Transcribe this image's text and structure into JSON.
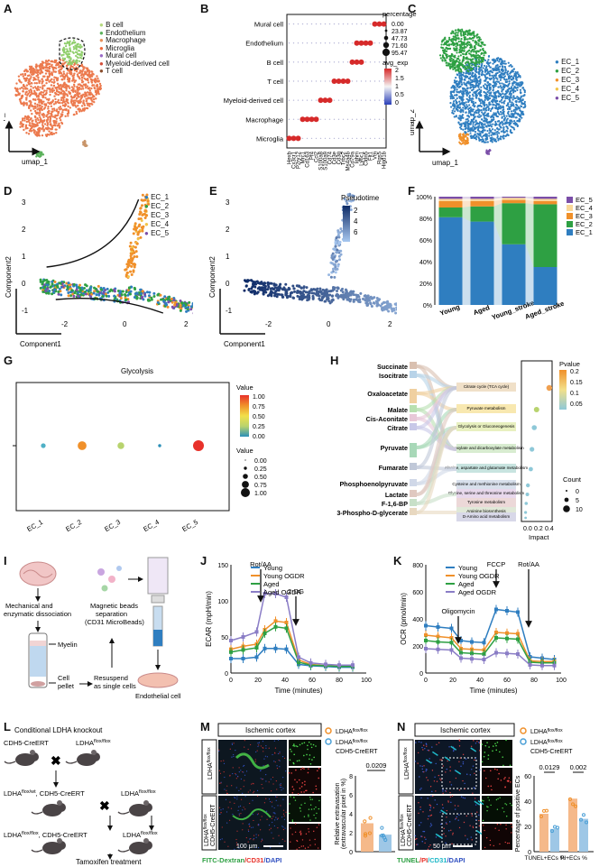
{
  "panels": {
    "A": {
      "letter": "A",
      "legend": [
        "B cell",
        "Endothelium",
        "Macrophage",
        "Microglia",
        "Mural cell",
        "Myeloid-derived cell",
        "T cell"
      ],
      "legend_colors": [
        "#b6d97e",
        "#5cb25c",
        "#e8905a",
        "#f06a3a",
        "#9b6bc8",
        "#d34f3a",
        "#8a4e2e"
      ],
      "xlabel": "umap_1",
      "ylabel": "umap_2"
    },
    "B": {
      "letter": "B",
      "rows": [
        "Mural cell",
        "Endothelium",
        "B cell",
        "T cell",
        "Myeloid-derived cell",
        "Macrophage",
        "Microglia"
      ],
      "genes": [
        "Hexb",
        "Cx3cr1",
        "P2ry12",
        "Mrc1",
        "Cd163",
        "Pf4",
        "Ccl2",
        "S100a8",
        "S100a9",
        "Cd74",
        "Cd3e",
        "Cd3g",
        "Trbc2",
        "Ms4a4b",
        "Cd79a",
        "Ighm",
        "Ly6c1",
        "Cldn5",
        "Flt1",
        "Vtn",
        "Rgs5",
        "Higd1b"
      ],
      "legend_title1": "percentage",
      "pct_values": [
        "0.00",
        "23.87",
        "47.73",
        "71.60",
        "95.47"
      ],
      "legend_title2": "avg_exp",
      "exp_ticks": [
        "2",
        "1.5",
        "1",
        "0.5",
        "0"
      ]
    },
    "C": {
      "letter": "C",
      "legend": [
        "EC_1",
        "EC_2",
        "EC_3",
        "EC_4",
        "EC_5"
      ],
      "legend_colors": [
        "#2f7ec0",
        "#2ea043",
        "#f0902a",
        "#f2c54a",
        "#7b4ea8"
      ],
      "xlabel": "umap_1",
      "ylabel": "umap_2"
    },
    "D": {
      "letter": "D",
      "legend": [
        "EC_1",
        "EC_2",
        "EC_3",
        "EC_4",
        "EC_5"
      ],
      "xlabel": "Component1",
      "ylabel": "Component2",
      "xticks": [
        "-2",
        "0",
        "2"
      ],
      "yticks": [
        "3",
        "2",
        "1",
        "0",
        "-1"
      ]
    },
    "E": {
      "letter": "E",
      "legend_title": "Pseudotime",
      "legend_ticks": [
        "2",
        "4",
        "6"
      ],
      "xlabel": "Component1",
      "ylabel": "Component2",
      "xticks": [
        "-2",
        "0",
        "2"
      ],
      "yticks": [
        "3",
        "2",
        "1",
        "0",
        "-1"
      ]
    },
    "F": {
      "letter": "F",
      "legend": [
        "EC_5",
        "EC_4",
        "EC_3",
        "EC_2",
        "EC_1"
      ],
      "yticks": [
        "100%",
        "80%",
        "60%",
        "40%",
        "20%",
        "0%"
      ]
    },
    "G": {
      "letter": "G",
      "title": "Glycolysis",
      "legend_title1": "Value",
      "value_ticks": [
        "1.00",
        "0.75",
        "0.50",
        "0.25",
        "0.00"
      ],
      "legend_title2": "Value",
      "size_ticks": [
        "0.00",
        "0.25",
        "0.50",
        "0.75",
        "1.00"
      ]
    },
    "H": {
      "letter": "H",
      "metabolites": [
        "Succinate",
        "Isocitrate",
        "Oxaloacetate",
        "Malate",
        "Cis-Aconitate",
        "Citrate",
        "Pyruvate",
        "Fumarate",
        "Phosphoenolpyruvate",
        "Lactate",
        "F-1,6-BP",
        "3-Phospho-D-glycerate"
      ],
      "pathways": [
        "Citrate cycle (TCA cycle)",
        "Pyruvate metabolism",
        "Glycolysis or Gluconeogenesis",
        "Glyoxylate and dicarboxylate metabolism",
        "Alanine, aspartate and glutamate metabolism",
        "Cysteine and methionine metabolism",
        "Glycine, serine and threonine metabolism",
        "Tyrosine metabolism",
        "Arginine biosynthesis",
        "D-Amino acid metabolism"
      ],
      "xlabel": "Impact",
      "xticks": [
        "0.0",
        "0.2",
        "0.4"
      ],
      "legend_title1": "Pvalue",
      "pvalue_ticks": [
        "0.2",
        "0.15",
        "0.1",
        "0.05"
      ],
      "legend_title2": "Count",
      "count_ticks": [
        "0",
        "5",
        "10"
      ]
    },
    "I": {
      "letter": "I",
      "label_mech": "Mechanical and enzymatic dissociation",
      "label_mag": "Magnetic beads separation (CD31 MicroBeads)",
      "label_myelin": "Myelin",
      "label_pellet": "Cell pellet",
      "label_resuspend": "Resuspend as single cells",
      "label_ec": "Endothelial cell"
    },
    "J": {
      "letter": "J",
      "ylabel": "ECAR (mpH/min)",
      "xlabel": "Time (minutes)",
      "annot": [
        "Rot/AA",
        "2-DG"
      ],
      "yticks": [
        "150",
        "100",
        "50",
        "0"
      ],
      "xticks": [
        "0",
        "20",
        "40",
        "60",
        "80",
        "100"
      ]
    },
    "K": {
      "letter": "K",
      "ylabel": "OCR (pmol/min)",
      "xlabel": "Time (minutes)",
      "annot": [
        "Oligomycin",
        "FCCP",
        "Rot/AA"
      ],
      "yticks": [
        "800",
        "600",
        "400",
        "200",
        "0"
      ],
      "xticks": [
        "0",
        "20",
        "40",
        "60",
        "80",
        "100"
      ]
    },
    "L": {
      "letter": "L",
      "title": "Conditional LDHA knockout",
      "m1": "CDH5-CreERT",
      "m2": "LDHA",
      "m2sup": "flox/flox",
      "m3a": "LDHA",
      "m3sup": "flox/wt",
      "m3b": ", CDH5-CreERT",
      "m4": "LDHA",
      "m4sup": "flox/flox",
      "m5a": "LDHA",
      "m5sup": "flox/flox",
      "m5b": ", CDH5-CreERT",
      "m6": "LDHA",
      "m6sup": "flox/flox",
      "tamoxifen": "Tamoxifen treatment"
    },
    "M": {
      "letter": "M",
      "header": "Ischemic cortex",
      "row1": "LDHA",
      "row1sup": "flox/flox",
      "row2a": "LDHA",
      "row2sup": "flox/flox",
      "row2b": "CDH5-CreERT",
      "scale": "100 μm",
      "stain1": "FITC-Dextran",
      "stain2": "/CD31",
      "stain3": "/DAPI",
      "legend1": "LDHA",
      "legend1sup": "flox/flox",
      "legend2": "LDHA",
      "legend2sup": "flox/flox",
      "legend2b": "CDH5-CreERT",
      "pvalue": "0.0209",
      "ylabel1": "Relative extravasation",
      "ylabel2": "(extravascular pixel in %)",
      "yticks": [
        "8",
        "6",
        "4",
        "2",
        "0"
      ]
    },
    "N": {
      "letter": "N",
      "header": "Ischemic cortex",
      "row1": "LDHA",
      "row1sup": "flox/flox",
      "row2a": "LDHA",
      "row2sup": "flox/flox",
      "row2b": "CDH5-CreERT",
      "scale": "50 μm",
      "stain1": "TUNEL",
      "stain2": "/PI",
      "stain3": "/CD31",
      "stain4": "/DAPI",
      "legend1": "LDHA",
      "legend1sup": "flox/flox",
      "legend2": "LDHA",
      "legend2sup": "flox/flox",
      "legend2b": "CDH5-CreERT",
      "pvalues": [
        "0.0129",
        "0.002"
      ],
      "ylabel": "Percentage of positive ECs",
      "xlabels": [
        "TUNEL+ECs %",
        "PI+ECs %"
      ],
      "yticks": [
        "60",
        "40",
        "20",
        "0"
      ]
    }
  },
  "chart_data": [
    {
      "panel": "F",
      "type": "bar",
      "categories": [
        "Young",
        "Aged",
        "Young_stroke",
        "Aged_stroke"
      ],
      "series": [
        {
          "name": "EC_1",
          "values": [
            81,
            77,
            56,
            35
          ]
        },
        {
          "name": "EC_2",
          "values": [
            9,
            14,
            38,
            58
          ]
        },
        {
          "name": "EC_3",
          "values": [
            6,
            5,
            3,
            3
          ]
        },
        {
          "name": "EC_4",
          "values": [
            2,
            2,
            2,
            2
          ]
        },
        {
          "name": "EC_5",
          "values": [
            2,
            2,
            1,
            2
          ]
        }
      ],
      "colors": [
        "#2f7ec0",
        "#2ea043",
        "#f0902a",
        "#f9d89a",
        "#7b4ea8"
      ],
      "ylim": [
        0,
        100
      ]
    },
    {
      "panel": "G",
      "type": "scatter",
      "categories": [
        "EC_1",
        "EC_2",
        "EC_3",
        "EC_4",
        "EC_5"
      ],
      "values": [
        0.25,
        0.75,
        0.5,
        0.05,
        1.0
      ],
      "colors": [
        "#4fb0c6",
        "#f0902a",
        "#b8d36e",
        "#2b8fb8",
        "#e8312a"
      ]
    },
    {
      "panel": "J",
      "type": "line",
      "x": [
        0,
        9,
        19,
        25,
        33,
        41,
        50,
        59,
        70,
        80,
        90
      ],
      "series": [
        {
          "name": "Young",
          "values": [
            20,
            20,
            22,
            34,
            34,
            33,
            12,
            10,
            9,
            8,
            8
          ]
        },
        {
          "name": "Young OGDR",
          "values": [
            33,
            37,
            40,
            60,
            72,
            70,
            18,
            12,
            10,
            10,
            10
          ]
        },
        {
          "name": "Aged",
          "values": [
            29,
            32,
            35,
            55,
            64,
            62,
            15,
            11,
            10,
            9,
            9
          ]
        },
        {
          "name": "Aged OGDR",
          "values": [
            45,
            50,
            57,
            110,
            110,
            105,
            22,
            14,
            12,
            11,
            11
          ]
        }
      ],
      "colors": [
        "#2f7ec0",
        "#f0902a",
        "#2ea043",
        "#8a7dc6"
      ],
      "ylim": [
        0,
        150
      ],
      "xlim": [
        0,
        100
      ]
    },
    {
      "panel": "K",
      "type": "line",
      "x": [
        0,
        9,
        19,
        26,
        34,
        43,
        52,
        60,
        68,
        77,
        86,
        95
      ],
      "series": [
        {
          "name": "Young",
          "values": [
            350,
            340,
            330,
            240,
            230,
            225,
            470,
            460,
            450,
            120,
            110,
            100
          ]
        },
        {
          "name": "Young OGDR",
          "values": [
            280,
            270,
            260,
            180,
            175,
            170,
            300,
            295,
            290,
            90,
            85,
            85
          ]
        },
        {
          "name": "Aged",
          "values": [
            240,
            230,
            225,
            150,
            145,
            140,
            260,
            255,
            250,
            80,
            75,
            75
          ]
        },
        {
          "name": "Aged OGDR",
          "values": [
            180,
            175,
            170,
            110,
            105,
            100,
            150,
            145,
            140,
            60,
            55,
            55
          ]
        }
      ],
      "colors": [
        "#2f7ec0",
        "#f0902a",
        "#2ea043",
        "#8a7dc6"
      ],
      "ylim": [
        0,
        800
      ],
      "xlim": [
        0,
        100
      ]
    },
    {
      "panel": "M",
      "type": "bar",
      "categories": [
        "LDHA flox/flox",
        "LDHA flox/flox CDH5-CreERT"
      ],
      "values": [
        3.0,
        1.8
      ],
      "colors": [
        "#f5b98a",
        "#9ec7e6"
      ],
      "ylim": [
        0,
        8
      ]
    },
    {
      "panel": "N",
      "type": "bar",
      "categories": [
        "TUNEL+ECs %",
        "PI+ECs %"
      ],
      "series": [
        {
          "name": "LDHA flox/flox",
          "values": [
            30,
            42
          ]
        },
        {
          "name": "LDHA flox/flox CDH5-CreERT",
          "values": [
            18,
            26
          ]
        }
      ],
      "colors": [
        "#f5b98a",
        "#9ec7e6"
      ],
      "ylim": [
        0,
        60
      ]
    }
  ]
}
